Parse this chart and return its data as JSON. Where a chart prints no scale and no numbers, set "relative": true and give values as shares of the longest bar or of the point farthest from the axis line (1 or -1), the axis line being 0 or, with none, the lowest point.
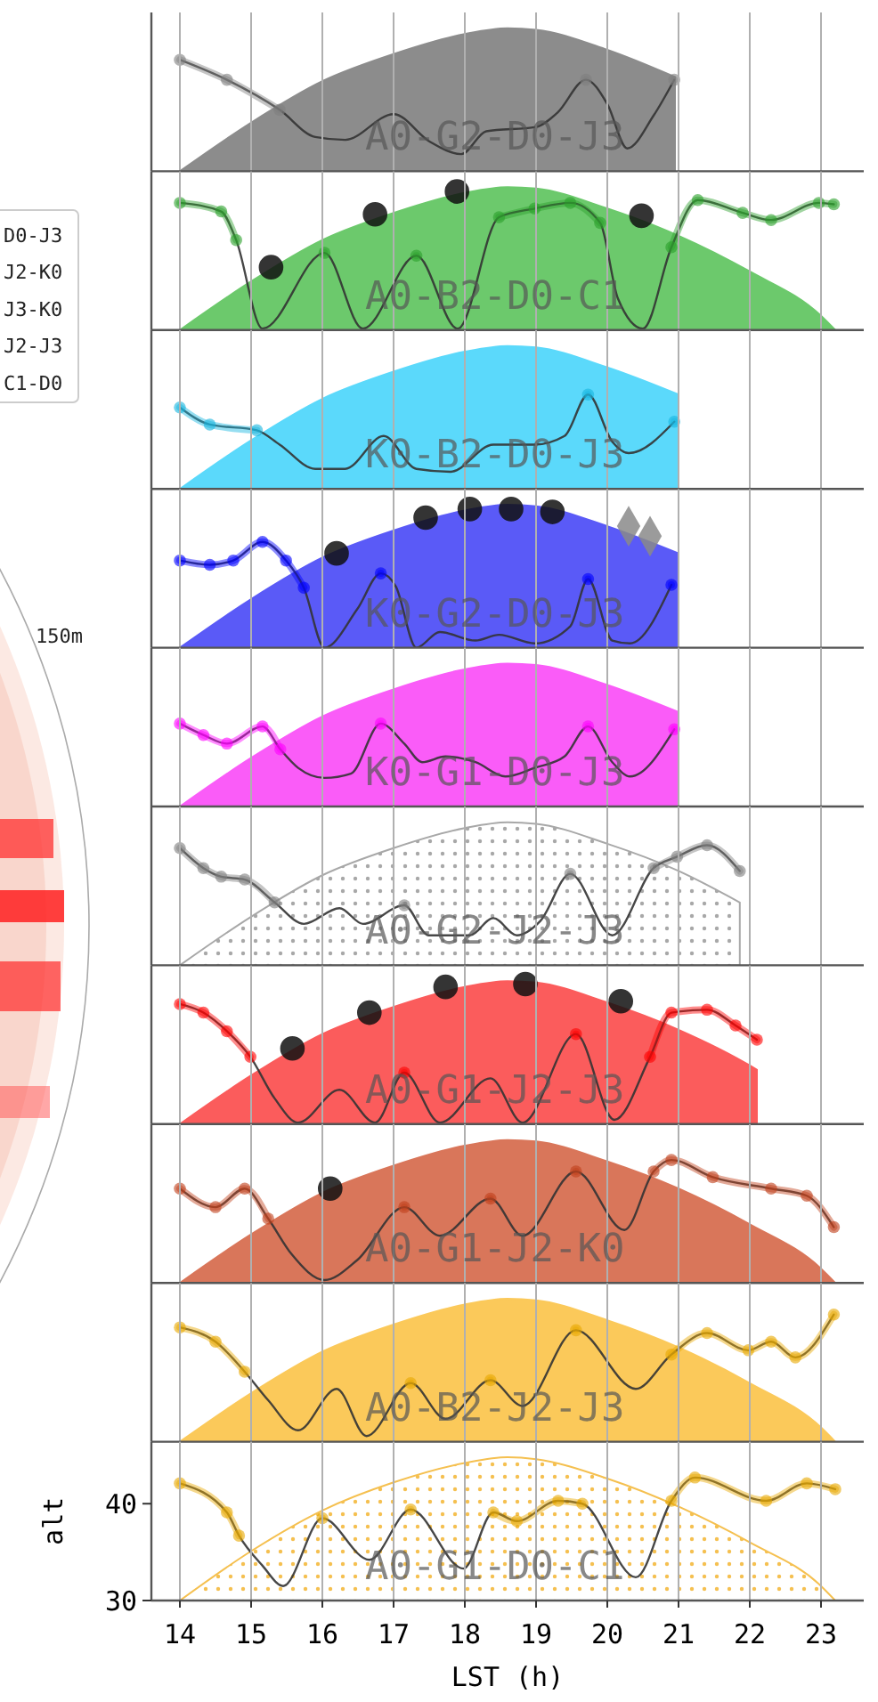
{
  "chart_data": [
    {
      "type": "other",
      "annotations": [
        "D0-J3",
        "J2-K0",
        "J3-K0",
        "J2-J3",
        "C1-D0",
        "150m"
      ]
    },
    {
      "type": "area",
      "relative": true,
      "xlim": [
        13.6,
        23.6
      ],
      "xticks": [
        14,
        15,
        16,
        17,
        18,
        19,
        20,
        21,
        22,
        23
      ],
      "grid": "x",
      "tick_labels": false,
      "annotations": [
        "A0-G2-D0-J3"
      ],
      "series": [
        {
          "type": "area",
          "color": "#8c8c8c",
          "x": [
            14,
            15,
            16,
            17,
            18,
            18.6,
            19,
            20,
            20.95
          ],
          "values": [
            0,
            0.34,
            0.63,
            0.82,
            0.96,
            1,
            0.99,
            0.85,
            0.66
          ]
        },
        {
          "type": "line",
          "color": "#333333",
          "x": [
            14,
            14.66,
            15.4,
            15.9,
            16.32,
            17.0,
            17.5,
            17.95,
            18.3,
            19.0,
            19.3,
            19.7,
            20.0,
            20.28,
            20.65,
            20.94
          ],
          "values": [
            0.78,
            0.64,
            0.43,
            0.24,
            0.22,
            0.4,
            0.21,
            0.12,
            0.28,
            0.31,
            0.41,
            0.64,
            0.47,
            0.16,
            0.39,
            0.64
          ]
        },
        {
          "type": "line",
          "color": "#7f7f7f",
          "marker": "circle",
          "x": [
            14,
            14.66,
            15.4,
            15.9,
            16.32,
            17.0,
            17.5,
            17.95,
            18.3,
            19.0,
            19.3,
            19.7,
            20.0,
            20.28,
            20.65,
            20.94
          ],
          "values": [
            0.78,
            0.64,
            0.43,
            null,
            null,
            null,
            null,
            null,
            null,
            null,
            null,
            0.64,
            null,
            null,
            null,
            0.64
          ]
        }
      ]
    },
    {
      "type": "area",
      "relative": true,
      "xlim": [
        13.6,
        23.6
      ],
      "xticks": [
        14,
        15,
        16,
        17,
        18,
        19,
        20,
        21,
        22,
        23
      ],
      "grid": "x",
      "tick_labels": false,
      "annotations": [
        "A0-B2-D0-C1"
      ],
      "series": [
        {
          "type": "area",
          "color": "#6cc96c",
          "x": [
            14,
            15,
            16,
            17,
            18,
            18.6,
            19,
            20,
            21,
            22,
            23,
            23.2
          ],
          "values": [
            0,
            0.34,
            0.63,
            0.82,
            0.96,
            1,
            0.99,
            0.85,
            0.66,
            0.41,
            0.1,
            0
          ]
        },
        {
          "type": "line",
          "color": "#333333",
          "x": [
            14,
            14.58,
            14.79,
            15.16,
            16.03,
            16.57,
            17.32,
            17.9,
            18.48,
            18.98,
            19.48,
            19.9,
            20.15,
            20.5,
            20.9,
            21.27,
            21.9,
            22.3,
            22.97,
            23.18
          ],
          "values": [
            0.89,
            0.83,
            0.63,
            0.01,
            0.54,
            0.01,
            0.52,
            0.01,
            0.79,
            0.85,
            0.89,
            0.75,
            0.22,
            0.01,
            0.58,
            0.91,
            0.82,
            0.77,
            0.89,
            0.88
          ]
        },
        {
          "type": "line",
          "color": "#2ca02c",
          "marker": "circle",
          "x": [
            14,
            14.58,
            14.79,
            15.16,
            16.03,
            16.57,
            17.32,
            17.9,
            18.48,
            18.98,
            19.48,
            19.9,
            20.15,
            20.5,
            20.9,
            21.27,
            21.9,
            22.3,
            22.97,
            23.18
          ],
          "values": [
            0.89,
            0.83,
            0.63,
            null,
            0.54,
            null,
            0.52,
            null,
            0.79,
            0.85,
            0.89,
            0.75,
            null,
            null,
            0.58,
            0.91,
            0.82,
            0.77,
            0.89,
            0.88
          ]
        },
        {
          "type": "scatter",
          "color": "#111111",
          "marker": "circle",
          "x": [
            15.28,
            16.74,
            17.89,
            20.48
          ],
          "values": [
            0.44,
            0.81,
            0.97,
            0.8
          ]
        }
      ]
    },
    {
      "type": "area",
      "relative": true,
      "xlim": [
        13.6,
        23.6
      ],
      "xticks": [
        14,
        15,
        16,
        17,
        18,
        19,
        20,
        21,
        22,
        23
      ],
      "grid": "x",
      "tick_labels": false,
      "annotations": [
        "K0-B2-D0-J3"
      ],
      "series": [
        {
          "type": "area",
          "color": "#5bd9fb",
          "x": [
            14,
            15,
            16,
            17,
            18,
            18.6,
            19,
            20,
            21
          ],
          "values": [
            0,
            0.34,
            0.63,
            0.82,
            0.96,
            1,
            0.99,
            0.85,
            0.66
          ]
        },
        {
          "type": "line",
          "color": "#333333",
          "x": [
            14,
            14.42,
            15.08,
            15.4,
            15.9,
            16.32,
            16.86,
            17.32,
            17.8,
            18.4,
            18.98,
            19.4,
            19.73,
            20.07,
            20.3,
            20.94
          ],
          "values": [
            0.57,
            0.45,
            0.41,
            0.31,
            0.14,
            0.14,
            0.37,
            0.14,
            0.12,
            0.31,
            0.31,
            0.37,
            0.66,
            0.33,
            0.25,
            0.47
          ]
        },
        {
          "type": "line",
          "color": "#17b5e0",
          "marker": "circle",
          "x": [
            14,
            14.42,
            15.08,
            15.4,
            15.9,
            16.32,
            16.86,
            17.32,
            17.8,
            18.4,
            18.98,
            19.4,
            19.73,
            20.07,
            20.3,
            20.94
          ],
          "values": [
            0.57,
            0.45,
            0.41,
            null,
            null,
            null,
            null,
            null,
            null,
            null,
            null,
            null,
            0.66,
            null,
            null,
            0.47
          ]
        }
      ]
    },
    {
      "type": "area",
      "relative": true,
      "xlim": [
        13.6,
        23.6
      ],
      "xticks": [
        14,
        15,
        16,
        17,
        18,
        19,
        20,
        21,
        22,
        23
      ],
      "grid": "x",
      "tick_labels": false,
      "annotations": [
        "K0-G2-D0-J3"
      ],
      "series": [
        {
          "type": "area",
          "color": "#5a5af7",
          "x": [
            14,
            15,
            16,
            17,
            18,
            18.6,
            19,
            20,
            21
          ],
          "values": [
            0,
            0.34,
            0.63,
            0.82,
            0.96,
            1,
            0.99,
            0.85,
            0.66
          ]
        },
        {
          "type": "line",
          "color": "#333333",
          "x": [
            14,
            14.42,
            14.75,
            15.16,
            15.49,
            15.74,
            16.03,
            16.49,
            16.82,
            17.03,
            17.32,
            17.65,
            18.15,
            18.48,
            18.98,
            19.48,
            19.73,
            20.07,
            20.32,
            20.9
          ],
          "values": [
            0.61,
            0.58,
            0.61,
            0.74,
            0.61,
            0.42,
            0,
            0.27,
            0.52,
            0.43,
            0,
            0.11,
            0.05,
            0.09,
            0.03,
            0.15,
            0.48,
            0.05,
            0.03,
            0.44
          ]
        },
        {
          "type": "line",
          "color": "#0000ff",
          "marker": "circle",
          "x": [
            14,
            14.42,
            14.75,
            15.16,
            15.49,
            15.74,
            16.03,
            16.49,
            16.82,
            17.03,
            17.32,
            17.65,
            18.15,
            18.48,
            18.98,
            19.48,
            19.73,
            20.07,
            20.32,
            20.9
          ],
          "values": [
            0.61,
            0.58,
            0.61,
            0.74,
            0.61,
            0.42,
            null,
            null,
            0.52,
            null,
            null,
            null,
            null,
            null,
            null,
            null,
            0.48,
            null,
            null,
            0.44
          ]
        },
        {
          "type": "scatter",
          "color": "#111111",
          "marker": "circle",
          "x": [
            16.2,
            17.45,
            18.07,
            18.65,
            19.23
          ],
          "values": [
            0.66,
            0.91,
            0.97,
            0.97,
            0.95
          ]
        },
        {
          "type": "scatter",
          "color": "#8a8a8a",
          "marker": "diamond",
          "x": [
            20.3,
            20.6
          ],
          "values": [
            0.85,
            0.78
          ]
        }
      ]
    },
    {
      "type": "area",
      "relative": true,
      "xlim": [
        13.6,
        23.6
      ],
      "xticks": [
        14,
        15,
        16,
        17,
        18,
        19,
        20,
        21,
        22,
        23
      ],
      "grid": "x",
      "tick_labels": false,
      "annotations": [
        "K0-G1-D0-J3"
      ],
      "series": [
        {
          "type": "area",
          "color": "#fa5cf8",
          "x": [
            14,
            15,
            16,
            17,
            18,
            18.6,
            19,
            20,
            21
          ],
          "values": [
            0,
            0.34,
            0.63,
            0.82,
            0.96,
            1,
            0.99,
            0.85,
            0.66
          ]
        },
        {
          "type": "line",
          "color": "#333333",
          "x": [
            14,
            14.33,
            14.66,
            15.16,
            15.41,
            15.66,
            16.03,
            16.4,
            16.82,
            17.15,
            17.4,
            17.73,
            18.15,
            18.57,
            18.98,
            19.4,
            19.73,
            20.07,
            20.32,
            20.94
          ],
          "values": [
            0.58,
            0.5,
            0.44,
            0.56,
            0.4,
            0.27,
            0.2,
            0.23,
            0.58,
            0.44,
            0.31,
            0.35,
            0.31,
            0.21,
            0.27,
            0.35,
            0.56,
            0.31,
            0.21,
            0.54
          ]
        },
        {
          "type": "line",
          "color": "#ff00ff",
          "marker": "circle",
          "x": [
            14,
            14.33,
            14.66,
            15.16,
            15.41,
            15.66,
            16.03,
            16.4,
            16.82,
            17.15,
            17.4,
            17.73,
            18.15,
            18.57,
            18.98,
            19.4,
            19.73,
            20.07,
            20.32,
            20.94
          ],
          "values": [
            0.58,
            0.5,
            0.44,
            0.56,
            0.4,
            null,
            null,
            null,
            0.58,
            null,
            null,
            null,
            null,
            null,
            null,
            null,
            0.56,
            null,
            null,
            0.54
          ]
        }
      ]
    },
    {
      "type": "area",
      "relative": true,
      "xlim": [
        13.6,
        23.6
      ],
      "xticks": [
        14,
        15,
        16,
        17,
        18,
        19,
        20,
        21,
        22,
        23
      ],
      "grid": "x",
      "tick_labels": false,
      "annotations": [
        "A0-G2-J2-J3"
      ],
      "series": [
        {
          "type": "area",
          "color": "#a8a8a8",
          "line_style": "dotted",
          "x": [
            14,
            15,
            16,
            17,
            18,
            18.6,
            19,
            20,
            21,
            21.86
          ],
          "values": [
            0,
            0.34,
            0.63,
            0.82,
            0.96,
            1,
            0.99,
            0.85,
            0.66,
            0.44
          ]
        },
        {
          "type": "line",
          "color": "#333333",
          "x": [
            14,
            14.33,
            14.58,
            14.91,
            15.33,
            15.74,
            16.24,
            16.57,
            17.15,
            17.49,
            18.07,
            18.4,
            18.73,
            19.06,
            19.48,
            20.07,
            20.65,
            20.98,
            21.4,
            21.86
          ],
          "values": [
            0.82,
            0.68,
            0.62,
            0.6,
            0.44,
            0.29,
            0.4,
            0.29,
            0.42,
            0.21,
            0.21,
            0.33,
            0.21,
            0.31,
            0.64,
            0.21,
            0.68,
            0.76,
            0.84,
            0.66
          ]
        },
        {
          "type": "line",
          "color": "#7f7f7f",
          "marker": "circle",
          "x": [
            14,
            14.33,
            14.58,
            14.91,
            15.33,
            15.74,
            16.24,
            16.57,
            17.15,
            17.49,
            18.07,
            18.4,
            18.73,
            19.06,
            19.48,
            20.07,
            20.65,
            20.98,
            21.4,
            21.86
          ],
          "values": [
            0.82,
            0.68,
            0.62,
            0.6,
            0.44,
            null,
            null,
            null,
            0.42,
            null,
            null,
            null,
            null,
            null,
            0.64,
            null,
            0.68,
            0.76,
            0.84,
            0.66
          ]
        }
      ]
    },
    {
      "type": "area",
      "relative": true,
      "xlim": [
        13.6,
        23.6
      ],
      "xticks": [
        14,
        15,
        16,
        17,
        18,
        19,
        20,
        21,
        22,
        23
      ],
      "grid": "x",
      "tick_labels": false,
      "annotations": [
        "A0-G1-J2-J3"
      ],
      "series": [
        {
          "type": "area",
          "color": "#fb5c5c",
          "x": [
            14,
            15,
            16,
            17,
            18,
            18.6,
            19,
            20,
            21,
            22,
            22.1
          ],
          "values": [
            0,
            0.34,
            0.63,
            0.82,
            0.96,
            1,
            0.99,
            0.85,
            0.66,
            0.41,
            0.38
          ]
        },
        {
          "type": "line",
          "color": "#333333",
          "x": [
            14,
            14.33,
            14.66,
            14.99,
            15.33,
            15.66,
            16.24,
            16.74,
            17.15,
            17.65,
            18.36,
            18.81,
            19.56,
            20.1,
            20.6,
            20.9,
            21.4,
            21.8,
            22.1
          ],
          "values": [
            0.84,
            0.78,
            0.65,
            0.47,
            0.18,
            0.01,
            0.24,
            0.01,
            0.36,
            0.01,
            0.32,
            0.01,
            0.63,
            0.03,
            0.47,
            0.78,
            0.8,
            0.69,
            0.59
          ]
        },
        {
          "type": "line",
          "color": "#ff0000",
          "marker": "circle",
          "x": [
            14,
            14.33,
            14.66,
            14.99,
            15.33,
            15.66,
            16.24,
            16.74,
            17.15,
            17.65,
            18.36,
            18.81,
            19.56,
            20.1,
            20.6,
            20.9,
            21.4,
            21.8,
            22.1
          ],
          "values": [
            0.84,
            0.78,
            0.65,
            0.47,
            null,
            null,
            null,
            null,
            0.36,
            null,
            null,
            null,
            0.63,
            null,
            0.47,
            0.78,
            0.8,
            0.69,
            0.59
          ]
        },
        {
          "type": "scatter",
          "color": "#111111",
          "marker": "circle",
          "x": [
            15.58,
            16.66,
            17.73,
            18.85,
            20.19
          ],
          "values": [
            0.53,
            0.78,
            0.96,
            0.98,
            0.86
          ]
        }
      ]
    },
    {
      "type": "area",
      "relative": true,
      "xlim": [
        13.6,
        23.6
      ],
      "xticks": [
        14,
        15,
        16,
        17,
        18,
        19,
        20,
        21,
        22,
        23
      ],
      "grid": "x",
      "tick_labels": false,
      "annotations": [
        "A0-G1-J2-K0"
      ],
      "series": [
        {
          "type": "area",
          "color": "#d9765a",
          "x": [
            14,
            15,
            16,
            17,
            18,
            18.6,
            19,
            20,
            21,
            22,
            23,
            23.2
          ],
          "values": [
            0,
            0.34,
            0.63,
            0.82,
            0.96,
            1,
            0.99,
            0.85,
            0.66,
            0.41,
            0.1,
            0
          ]
        },
        {
          "type": "line",
          "color": "#333333",
          "x": [
            14,
            14.5,
            14.91,
            15.24,
            15.57,
            16.03,
            16.49,
            17.15,
            17.65,
            18.36,
            18.81,
            19.56,
            20.24,
            20.65,
            20.9,
            21.48,
            22.3,
            22.8,
            23.18
          ],
          "values": [
            0.66,
            0.53,
            0.66,
            0.45,
            0.2,
            0.02,
            0.16,
            0.53,
            0.33,
            0.59,
            0.33,
            0.78,
            0.37,
            0.78,
            0.86,
            0.74,
            0.66,
            0.61,
            0.39
          ]
        },
        {
          "type": "line",
          "color": "#c0401a",
          "marker": "circle",
          "x": [
            14,
            14.5,
            14.91,
            15.24,
            15.57,
            16.03,
            16.49,
            17.15,
            17.65,
            18.36,
            18.81,
            19.56,
            20.24,
            20.65,
            20.9,
            21.48,
            22.3,
            22.8,
            23.18
          ],
          "values": [
            0.66,
            0.53,
            0.66,
            0.45,
            null,
            null,
            null,
            0.53,
            null,
            0.59,
            null,
            0.78,
            null,
            0.78,
            0.86,
            0.74,
            0.66,
            0.61,
            0.39
          ]
        },
        {
          "type": "scatter",
          "color": "#111111",
          "marker": "circle",
          "x": [
            16.11
          ],
          "values": [
            0.66
          ]
        }
      ]
    },
    {
      "type": "area",
      "relative": true,
      "xlim": [
        13.6,
        23.6
      ],
      "xticks": [
        14,
        15,
        16,
        17,
        18,
        19,
        20,
        21,
        22,
        23
      ],
      "grid": "x",
      "tick_labels": false,
      "annotations": [
        "A0-B2-J2-J3"
      ],
      "series": [
        {
          "type": "area",
          "color": "#fbc95a",
          "x": [
            14,
            15,
            16,
            17,
            18,
            18.6,
            19,
            20,
            21,
            22,
            23,
            23.2
          ],
          "values": [
            0,
            0.34,
            0.63,
            0.82,
            0.96,
            1,
            0.99,
            0.85,
            0.66,
            0.41,
            0.1,
            0
          ]
        },
        {
          "type": "line",
          "color": "#333333",
          "x": [
            14,
            14.5,
            14.91,
            15.24,
            15.66,
            16.2,
            16.62,
            17.24,
            17.73,
            18.36,
            18.81,
            19.56,
            20.4,
            20.9,
            21.4,
            21.98,
            22.3,
            22.64,
            23.18
          ],
          "values": [
            0.8,
            0.7,
            0.49,
            0.29,
            0.08,
            0.37,
            0.04,
            0.41,
            0.16,
            0.43,
            0.25,
            0.78,
            0.37,
            0.61,
            0.76,
            0.64,
            0.7,
            0.59,
            0.89
          ]
        },
        {
          "type": "line",
          "color": "#e8a800",
          "marker": "circle",
          "x": [
            14,
            14.5,
            14.91,
            15.24,
            15.66,
            16.2,
            16.62,
            17.24,
            17.73,
            18.36,
            18.81,
            19.56,
            20.4,
            20.9,
            21.4,
            21.98,
            22.3,
            22.64,
            23.18
          ],
          "values": [
            0.8,
            0.7,
            0.49,
            null,
            null,
            null,
            null,
            0.41,
            null,
            0.43,
            null,
            0.78,
            null,
            0.61,
            0.76,
            0.64,
            0.7,
            0.59,
            0.89
          ]
        }
      ]
    },
    {
      "type": "area",
      "xlim": [
        13.6,
        23.6
      ],
      "ylim": [
        30,
        46.4
      ],
      "xticks": [
        14,
        15,
        16,
        17,
        18,
        19,
        20,
        21,
        22,
        23
      ],
      "yticks": [
        30,
        40
      ],
      "grid": "x",
      "xlabel": "LST (h)",
      "ylabel": "alt",
      "annotations": [
        "A0-G1-D0-C1"
      ],
      "series": [
        {
          "type": "area",
          "color": "#f5c050",
          "line_style": "dotted",
          "x": [
            14,
            15,
            16,
            17,
            18,
            18.6,
            19,
            20,
            21,
            22,
            23,
            23.2
          ],
          "values": [
            30,
            35.1,
            39.3,
            42.2,
            44.2,
            44.8,
            44.6,
            42.6,
            39.7,
            36.0,
            31.5,
            30
          ]
        },
        {
          "type": "line",
          "color": "#333333",
          "x": [
            14,
            14.66,
            14.83,
            15.16,
            15.45,
            16.0,
            16.66,
            17.24,
            17.98,
            18.4,
            18.73,
            19.31,
            19.65,
            20.4,
            20.9,
            21.23,
            22.23,
            22.8,
            23.2
          ],
          "values": [
            42.1,
            39.1,
            36.7,
            33.6,
            31.5,
            38.5,
            34.2,
            39.4,
            33.3,
            39.1,
            38.2,
            40.3,
            40.0,
            32.4,
            40.3,
            42.7,
            40.3,
            42.1,
            41.5
          ]
        },
        {
          "type": "line",
          "color": "#e8a800",
          "marker": "circle",
          "x": [
            14,
            14.66,
            14.83,
            15.16,
            15.45,
            16.0,
            16.66,
            17.24,
            17.98,
            18.4,
            18.73,
            19.31,
            19.65,
            20.4,
            20.9,
            21.23,
            22.23,
            22.8,
            23.2
          ],
          "values": [
            42.1,
            39.1,
            36.7,
            null,
            null,
            38.5,
            null,
            39.4,
            null,
            39.1,
            38.2,
            40.3,
            40.0,
            null,
            40.3,
            42.7,
            40.3,
            42.1,
            41.5
          ]
        }
      ]
    }
  ]
}
